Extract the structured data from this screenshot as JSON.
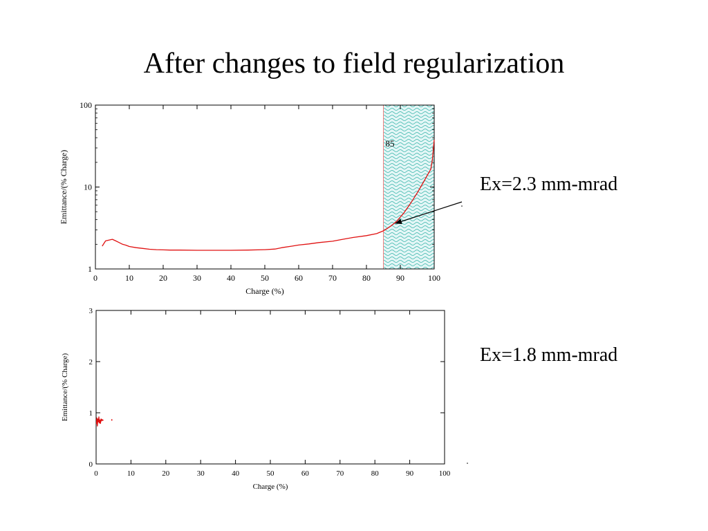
{
  "slide": {
    "title": "After changes to field regularization",
    "annotations": [
      "Ex=2.3 mm-mrad",
      "Ex=1.8 mm-mrad"
    ]
  },
  "colors": {
    "curve": "#e01010",
    "cut_line": "#f08080",
    "shade_fill": "#e3f6f6",
    "shade_pattern": "#2fb2a6"
  },
  "chart_data": [
    {
      "type": "line",
      "title": "",
      "xlabel": "Charge (%)",
      "ylabel": "Emittance/(% Charge)",
      "xlim": [
        0,
        100
      ],
      "ylim": [
        1,
        100
      ],
      "yscale": "log",
      "x_ticks": [
        0,
        10,
        20,
        30,
        40,
        50,
        60,
        70,
        80,
        90,
        100
      ],
      "y_ticks": [
        1,
        10,
        100
      ],
      "grid": false,
      "cut": {
        "x": 85,
        "label": "85",
        "shaded_range": [
          85,
          100
        ]
      },
      "series": [
        {
          "x": [
            2,
            3,
            4,
            5,
            6,
            7,
            8,
            9,
            10,
            12,
            14,
            16,
            18,
            20,
            22,
            25,
            30,
            35,
            40,
            45,
            50,
            53,
            55,
            58,
            60,
            63,
            66,
            70,
            73,
            76,
            80,
            83,
            85,
            86,
            87,
            88,
            89,
            90,
            91,
            92,
            93,
            94,
            95,
            96,
            97,
            98,
            99,
            99.5,
            100
          ],
          "y": [
            1.9,
            2.2,
            2.25,
            2.3,
            2.2,
            2.1,
            2.0,
            1.95,
            1.88,
            1.82,
            1.78,
            1.74,
            1.72,
            1.71,
            1.7,
            1.7,
            1.69,
            1.69,
            1.69,
            1.7,
            1.72,
            1.75,
            1.82,
            1.9,
            1.96,
            2.02,
            2.1,
            2.18,
            2.3,
            2.42,
            2.55,
            2.7,
            2.92,
            3.1,
            3.3,
            3.55,
            3.85,
            4.3,
            4.8,
            5.5,
            6.3,
            7.3,
            8.5,
            10.0,
            11.8,
            14.0,
            16.5,
            22,
            38
          ]
        }
      ]
    },
    {
      "type": "line",
      "title": "",
      "xlabel": "Charge (%)",
      "ylabel": "Emittance/(% Charge)",
      "xlim": [
        0,
        100
      ],
      "ylim": [
        0,
        3
      ],
      "x_ticks": [
        0,
        10,
        20,
        30,
        40,
        50,
        60,
        70,
        80,
        90,
        100
      ],
      "y_ticks": [
        0,
        1,
        2,
        3
      ],
      "grid": false,
      "series": [
        {
          "x": [
            0.1,
            0.2,
            0.35,
            0.5,
            0.65,
            0.8,
            0.95,
            1.1,
            1.25,
            1.4,
            1.55,
            1.7,
            1.9,
            2.1
          ],
          "y": [
            0.78,
            0.9,
            0.74,
            0.88,
            0.82,
            0.92,
            0.8,
            0.86,
            0.79,
            0.88,
            0.84,
            0.87,
            0.85,
            0.86
          ]
        },
        {
          "x": [
            4.5
          ],
          "y": [
            0.86
          ]
        }
      ]
    }
  ]
}
